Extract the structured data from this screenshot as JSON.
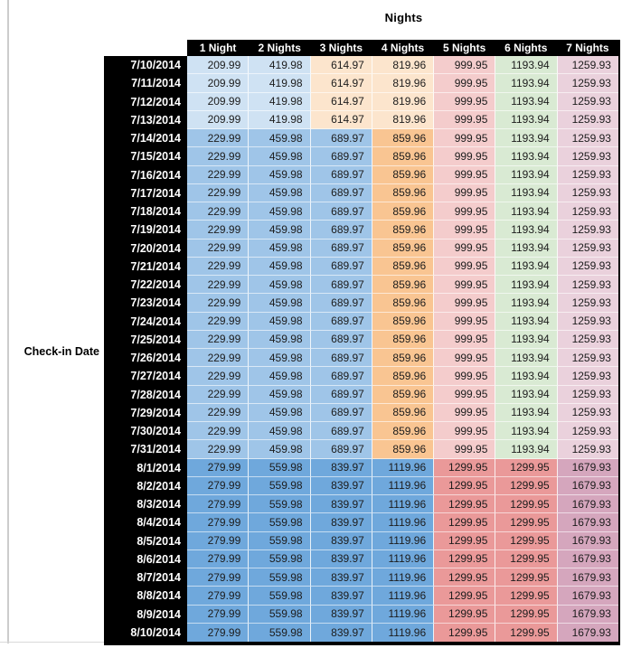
{
  "chart_data": {
    "type": "table",
    "title": "Nights",
    "row_header": "Check-in Date",
    "columns": [
      "1 Night",
      "2 Nights",
      "3 Nights",
      "4 Nights",
      "5 Nights",
      "6 Nights",
      "7 Nights"
    ],
    "header_style": {
      "background": "#000000",
      "text_color": "#ffffff"
    },
    "palette": {
      "low": [
        "#cfe2f3",
        "#cfe2f3",
        "#fce5cd",
        "#fce5cd",
        "#f4cccc",
        "#d9ead3",
        "#ead1dc"
      ],
      "mid": [
        "#9fc5e8",
        "#9fc5e8",
        "#9fc5e8",
        "#f9c592",
        "#f4cccc",
        "#d9ead3",
        "#ead1dc"
      ],
      "high": [
        "#6fa8dc",
        "#6fa8dc",
        "#6fa8dc",
        "#6fa8dc",
        "#ea9999",
        "#ea9999",
        "#d5a6bd"
      ]
    },
    "rows": [
      {
        "date": "7/10/2014",
        "tier": "low",
        "values": [
          "209.99",
          "419.98",
          "614.97",
          "819.96",
          "999.95",
          "1193.94",
          "1259.93"
        ]
      },
      {
        "date": "7/11/2014",
        "tier": "low",
        "values": [
          "209.99",
          "419.98",
          "614.97",
          "819.96",
          "999.95",
          "1193.94",
          "1259.93"
        ]
      },
      {
        "date": "7/12/2014",
        "tier": "low",
        "values": [
          "209.99",
          "419.98",
          "614.97",
          "819.96",
          "999.95",
          "1193.94",
          "1259.93"
        ]
      },
      {
        "date": "7/13/2014",
        "tier": "low",
        "values": [
          "209.99",
          "419.98",
          "614.97",
          "819.96",
          "999.95",
          "1193.94",
          "1259.93"
        ]
      },
      {
        "date": "7/14/2014",
        "tier": "mid",
        "values": [
          "229.99",
          "459.98",
          "689.97",
          "859.96",
          "999.95",
          "1193.94",
          "1259.93"
        ]
      },
      {
        "date": "7/15/2014",
        "tier": "mid",
        "values": [
          "229.99",
          "459.98",
          "689.97",
          "859.96",
          "999.95",
          "1193.94",
          "1259.93"
        ]
      },
      {
        "date": "7/16/2014",
        "tier": "mid",
        "values": [
          "229.99",
          "459.98",
          "689.97",
          "859.96",
          "999.95",
          "1193.94",
          "1259.93"
        ]
      },
      {
        "date": "7/17/2014",
        "tier": "mid",
        "values": [
          "229.99",
          "459.98",
          "689.97",
          "859.96",
          "999.95",
          "1193.94",
          "1259.93"
        ]
      },
      {
        "date": "7/18/2014",
        "tier": "mid",
        "values": [
          "229.99",
          "459.98",
          "689.97",
          "859.96",
          "999.95",
          "1193.94",
          "1259.93"
        ]
      },
      {
        "date": "7/19/2014",
        "tier": "mid",
        "values": [
          "229.99",
          "459.98",
          "689.97",
          "859.96",
          "999.95",
          "1193.94",
          "1259.93"
        ]
      },
      {
        "date": "7/20/2014",
        "tier": "mid",
        "values": [
          "229.99",
          "459.98",
          "689.97",
          "859.96",
          "999.95",
          "1193.94",
          "1259.93"
        ]
      },
      {
        "date": "7/21/2014",
        "tier": "mid",
        "values": [
          "229.99",
          "459.98",
          "689.97",
          "859.96",
          "999.95",
          "1193.94",
          "1259.93"
        ]
      },
      {
        "date": "7/22/2014",
        "tier": "mid",
        "values": [
          "229.99",
          "459.98",
          "689.97",
          "859.96",
          "999.95",
          "1193.94",
          "1259.93"
        ]
      },
      {
        "date": "7/23/2014",
        "tier": "mid",
        "values": [
          "229.99",
          "459.98",
          "689.97",
          "859.96",
          "999.95",
          "1193.94",
          "1259.93"
        ]
      },
      {
        "date": "7/24/2014",
        "tier": "mid",
        "values": [
          "229.99",
          "459.98",
          "689.97",
          "859.96",
          "999.95",
          "1193.94",
          "1259.93"
        ]
      },
      {
        "date": "7/25/2014",
        "tier": "mid",
        "values": [
          "229.99",
          "459.98",
          "689.97",
          "859.96",
          "999.95",
          "1193.94",
          "1259.93"
        ]
      },
      {
        "date": "7/26/2014",
        "tier": "mid",
        "values": [
          "229.99",
          "459.98",
          "689.97",
          "859.96",
          "999.95",
          "1193.94",
          "1259.93"
        ]
      },
      {
        "date": "7/27/2014",
        "tier": "mid",
        "values": [
          "229.99",
          "459.98",
          "689.97",
          "859.96",
          "999.95",
          "1193.94",
          "1259.93"
        ]
      },
      {
        "date": "7/28/2014",
        "tier": "mid",
        "values": [
          "229.99",
          "459.98",
          "689.97",
          "859.96",
          "999.95",
          "1193.94",
          "1259.93"
        ]
      },
      {
        "date": "7/29/2014",
        "tier": "mid",
        "values": [
          "229.99",
          "459.98",
          "689.97",
          "859.96",
          "999.95",
          "1193.94",
          "1259.93"
        ]
      },
      {
        "date": "7/30/2014",
        "tier": "mid",
        "values": [
          "229.99",
          "459.98",
          "689.97",
          "859.96",
          "999.95",
          "1193.94",
          "1259.93"
        ]
      },
      {
        "date": "7/31/2014",
        "tier": "mid",
        "values": [
          "229.99",
          "459.98",
          "689.97",
          "859.96",
          "999.95",
          "1193.94",
          "1259.93"
        ]
      },
      {
        "date": "8/1/2014",
        "tier": "high",
        "values": [
          "279.99",
          "559.98",
          "839.97",
          "1119.96",
          "1299.95",
          "1299.95",
          "1679.93"
        ]
      },
      {
        "date": "8/2/2014",
        "tier": "high",
        "values": [
          "279.99",
          "559.98",
          "839.97",
          "1119.96",
          "1299.95",
          "1299.95",
          "1679.93"
        ]
      },
      {
        "date": "8/3/2014",
        "tier": "high",
        "values": [
          "279.99",
          "559.98",
          "839.97",
          "1119.96",
          "1299.95",
          "1299.95",
          "1679.93"
        ]
      },
      {
        "date": "8/4/2014",
        "tier": "high",
        "values": [
          "279.99",
          "559.98",
          "839.97",
          "1119.96",
          "1299.95",
          "1299.95",
          "1679.93"
        ]
      },
      {
        "date": "8/5/2014",
        "tier": "high",
        "values": [
          "279.99",
          "559.98",
          "839.97",
          "1119.96",
          "1299.95",
          "1299.95",
          "1679.93"
        ]
      },
      {
        "date": "8/6/2014",
        "tier": "high",
        "values": [
          "279.99",
          "559.98",
          "839.97",
          "1119.96",
          "1299.95",
          "1299.95",
          "1679.93"
        ]
      },
      {
        "date": "8/7/2014",
        "tier": "high",
        "values": [
          "279.99",
          "559.98",
          "839.97",
          "1119.96",
          "1299.95",
          "1299.95",
          "1679.93"
        ]
      },
      {
        "date": "8/8/2014",
        "tier": "high",
        "values": [
          "279.99",
          "559.98",
          "839.97",
          "1119.96",
          "1299.95",
          "1299.95",
          "1679.93"
        ]
      },
      {
        "date": "8/9/2014",
        "tier": "high",
        "values": [
          "279.99",
          "559.98",
          "839.97",
          "1119.96",
          "1299.95",
          "1299.95",
          "1679.93"
        ]
      },
      {
        "date": "8/10/2014",
        "tier": "high",
        "values": [
          "279.99",
          "559.98",
          "839.97",
          "1119.96",
          "1299.95",
          "1299.95",
          "1679.93"
        ]
      }
    ]
  }
}
